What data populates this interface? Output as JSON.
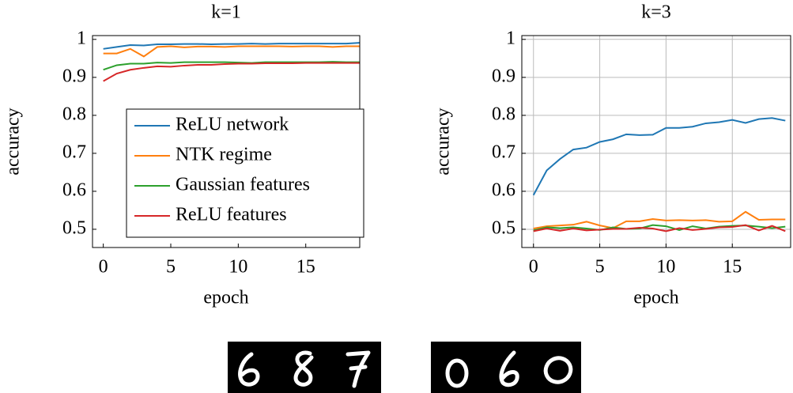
{
  "chart_data": [
    {
      "type": "line",
      "title": "k=1",
      "x_label": "epoch",
      "y_label": "accuracy",
      "x": [
        0,
        1,
        2,
        3,
        4,
        5,
        6,
        7,
        8,
        9,
        10,
        11,
        12,
        13,
        14,
        15,
        16,
        17,
        18,
        19
      ],
      "xlim": [
        -0.8,
        19
      ],
      "ylim": [
        0.452,
        1.01
      ],
      "xticks": [
        0,
        5,
        10,
        15
      ],
      "yticks": [
        0.5,
        0.6,
        0.7,
        0.8,
        0.9,
        1
      ],
      "grid": false,
      "legend": "south east",
      "series": [
        {
          "name": "ReLU network",
          "color": "#1f77b4",
          "values": [
            0.975,
            0.98,
            0.985,
            0.984,
            0.987,
            0.987,
            0.988,
            0.988,
            0.987,
            0.988,
            0.988,
            0.989,
            0.988,
            0.989,
            0.989,
            0.989,
            0.989,
            0.989,
            0.989,
            0.991
          ]
        },
        {
          "name": "NTK regime",
          "color": "#ff7f0e",
          "values": [
            0.963,
            0.963,
            0.975,
            0.955,
            0.98,
            0.982,
            0.979,
            0.981,
            0.981,
            0.98,
            0.982,
            0.982,
            0.982,
            0.982,
            0.981,
            0.982,
            0.982,
            0.98,
            0.982,
            0.982
          ]
        },
        {
          "name": "Gaussian features",
          "color": "#2ca02c",
          "values": [
            0.92,
            0.932,
            0.936,
            0.936,
            0.939,
            0.938,
            0.94,
            0.94,
            0.94,
            0.94,
            0.939,
            0.938,
            0.94,
            0.94,
            0.94,
            0.94,
            0.94,
            0.941,
            0.94,
            0.94
          ]
        },
        {
          "name": "ReLU features",
          "color": "#d62728",
          "values": [
            0.89,
            0.91,
            0.92,
            0.925,
            0.929,
            0.928,
            0.931,
            0.933,
            0.933,
            0.935,
            0.936,
            0.936,
            0.937,
            0.937,
            0.937,
            0.938,
            0.938,
            0.938,
            0.938,
            0.938
          ]
        }
      ]
    },
    {
      "type": "line",
      "title": "k=3",
      "x_label": "epoch",
      "y_label": "accuracy",
      "x": [
        0,
        1,
        2,
        3,
        4,
        5,
        6,
        7,
        8,
        9,
        10,
        11,
        12,
        13,
        14,
        15,
        16,
        17,
        18,
        19
      ],
      "xlim": [
        -0.88,
        19.4
      ],
      "ylim": [
        0.452,
        1.01
      ],
      "xticks": [
        0,
        5,
        10,
        15
      ],
      "yticks": [
        0.5,
        0.6,
        0.7,
        0.8,
        0.9,
        1
      ],
      "grid": true,
      "series": [
        {
          "color": "#1f77b4",
          "values": [
            0.59,
            0.655,
            0.685,
            0.71,
            0.715,
            0.73,
            0.737,
            0.75,
            0.748,
            0.749,
            0.767,
            0.767,
            0.77,
            0.779,
            0.782,
            0.788,
            0.78,
            0.79,
            0.793,
            0.786
          ]
        },
        {
          "color": "#ff7f0e",
          "values": [
            0.502,
            0.508,
            0.51,
            0.512,
            0.52,
            0.51,
            0.503,
            0.521,
            0.521,
            0.527,
            0.523,
            0.524,
            0.523,
            0.524,
            0.52,
            0.521,
            0.546,
            0.525,
            0.526,
            0.526
          ]
        },
        {
          "color": "#2ca02c",
          "values": [
            0.497,
            0.505,
            0.503,
            0.505,
            0.502,
            0.498,
            0.505,
            0.501,
            0.502,
            0.511,
            0.508,
            0.498,
            0.508,
            0.502,
            0.507,
            0.509,
            0.51,
            0.507,
            0.503,
            0.507
          ]
        },
        {
          "color": "#d62728",
          "values": [
            0.495,
            0.502,
            0.496,
            0.502,
            0.497,
            0.499,
            0.501,
            0.501,
            0.504,
            0.502,
            0.495,
            0.503,
            0.498,
            0.501,
            0.505,
            0.506,
            0.511,
            0.497,
            0.509,
            0.495
          ]
        }
      ]
    }
  ]
}
